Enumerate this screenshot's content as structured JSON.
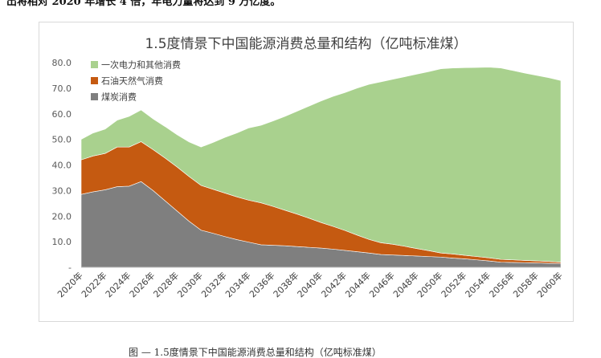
{
  "document": {
    "top_text": "出将相对 2020 年增长 4 倍，年电力量将达到 9 万亿度。",
    "bottom_caption": "图 — 1.5度情景下中国能源消费总量和结构（亿吨标准煤）"
  },
  "chart_data": {
    "type": "area",
    "stacked": true,
    "title": "1.5度情景下中国能源消费总量和结构（亿吨标准煤）",
    "xlabel": "",
    "ylabel": "",
    "ylim": [
      0,
      80
    ],
    "yticks": [
      "-",
      "10.0",
      "20.0",
      "30.0",
      "40.0",
      "50.0",
      "60.0",
      "70.0",
      "80.0"
    ],
    "grid": false,
    "legend_position": "top-left",
    "x": [
      2020,
      2021,
      2022,
      2023,
      2024,
      2025,
      2026,
      2027,
      2028,
      2029,
      2030,
      2031,
      2032,
      2033,
      2034,
      2035,
      2036,
      2037,
      2038,
      2039,
      2040,
      2041,
      2042,
      2043,
      2044,
      2045,
      2046,
      2047,
      2048,
      2049,
      2050,
      2051,
      2052,
      2053,
      2054,
      2055,
      2056,
      2057,
      2058,
      2059,
      2060
    ],
    "x_tick_labels": [
      "2020年",
      "2022年",
      "2024年",
      "2026年",
      "2028年",
      "2030年",
      "2032年",
      "2034年",
      "2036年",
      "2038年",
      "2040年",
      "2042年",
      "2044年",
      "2046年",
      "2048年",
      "2050年",
      "2052年",
      "2054年",
      "2056年",
      "2058年",
      "2060年"
    ],
    "series": [
      {
        "name": "煤炭消费",
        "color": "#7f7f7f",
        "values": [
          28.5,
          29.5,
          30.3,
          31.5,
          31.7,
          33.5,
          30.0,
          26.0,
          22.0,
          18.0,
          14.5,
          13.3,
          12.0,
          10.8,
          9.8,
          8.8,
          8.6,
          8.4,
          8.1,
          7.8,
          7.5,
          7.1,
          6.6,
          6.1,
          5.6,
          5.0,
          4.8,
          4.6,
          4.4,
          4.2,
          4.0,
          3.6,
          3.3,
          2.9,
          2.5,
          2.0,
          1.9,
          1.8,
          1.7,
          1.6,
          1.5
        ]
      },
      {
        "name": "石油天然气消费",
        "color": "#c55a11",
        "values": [
          13.5,
          14.0,
          14.2,
          15.5,
          15.3,
          15.6,
          16.0,
          16.7,
          17.2,
          17.5,
          17.5,
          17.2,
          17.0,
          16.7,
          16.4,
          16.4,
          15.2,
          13.9,
          12.7,
          11.4,
          10.0,
          8.9,
          7.8,
          6.5,
          5.3,
          4.6,
          4.2,
          3.6,
          2.9,
          2.3,
          1.6,
          1.6,
          1.4,
          1.3,
          1.2,
          1.1,
          1.0,
          0.9,
          0.8,
          0.7,
          0.5
        ]
      },
      {
        "name": "一次电力和其他消费",
        "color": "#a9d18e",
        "values": [
          8.0,
          9.0,
          9.5,
          10.5,
          12.0,
          12.4,
          12.0,
          12.3,
          12.6,
          13.5,
          15.0,
          18.3,
          21.8,
          25.0,
          28.3,
          30.3,
          33.4,
          36.7,
          40.2,
          43.8,
          47.5,
          50.8,
          53.9,
          57.4,
          60.6,
          62.9,
          64.5,
          66.3,
          68.2,
          70.0,
          72.0,
          72.7,
          73.3,
          73.9,
          74.5,
          74.8,
          74.0,
          73.2,
          72.5,
          71.8,
          71.0
        ]
      }
    ]
  }
}
